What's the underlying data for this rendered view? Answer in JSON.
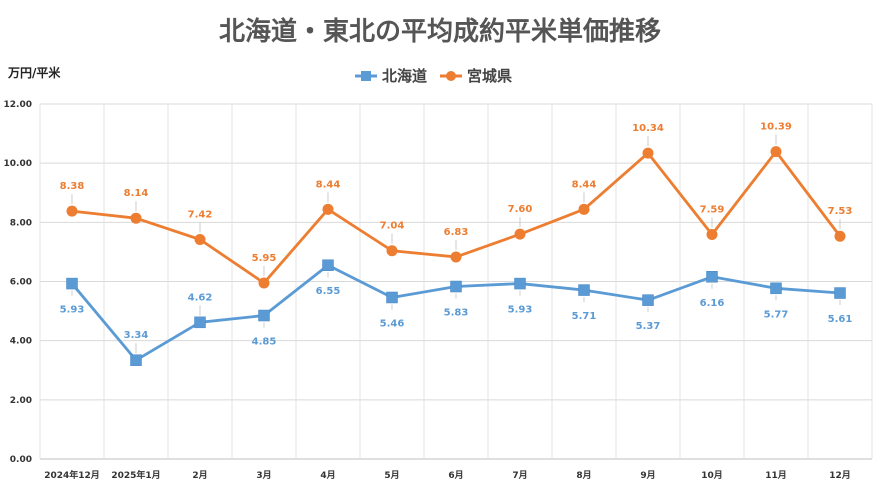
{
  "chart_data": {
    "type": "line",
    "title": "北海道・東北の平均成約平米単価推移",
    "ylabel": "万円/平米",
    "xlabel": "",
    "ylim": [
      0,
      12
    ],
    "yticks": [
      "0.00",
      "2.00",
      "4.00",
      "6.00",
      "8.00",
      "10.00",
      "12.00"
    ],
    "categories": [
      "2024年12月",
      "2025年1月",
      "2月",
      "3月",
      "4月",
      "5月",
      "6月",
      "7月",
      "8月",
      "9月",
      "10月",
      "11月",
      "12月"
    ],
    "grid": true,
    "legend": "top-center",
    "series": [
      {
        "name": "北海道",
        "color": "#5b9bd5",
        "marker": "square",
        "values": [
          5.93,
          3.34,
          4.62,
          4.85,
          6.55,
          5.46,
          5.83,
          5.93,
          5.71,
          5.37,
          6.16,
          5.77,
          5.61
        ],
        "labels": [
          "5.93",
          "3.34",
          "4.62",
          "4.85",
          "6.55",
          "5.46",
          "5.83",
          "5.93",
          "5.71",
          "5.37",
          "6.16",
          "5.77",
          "5.61"
        ],
        "label_pos": [
          "below",
          "above",
          "above",
          "below",
          "below",
          "below",
          "below",
          "below",
          "below",
          "below",
          "below",
          "below",
          "below"
        ]
      },
      {
        "name": "宮城県",
        "color": "#ed7d31",
        "marker": "circle",
        "values": [
          8.38,
          8.14,
          7.42,
          5.95,
          8.44,
          7.04,
          6.83,
          7.6,
          8.44,
          10.34,
          7.59,
          10.39,
          7.53
        ],
        "labels": [
          "8.38",
          "8.14",
          "7.42",
          "5.95",
          "8.44",
          "7.04",
          "6.83",
          "7.60",
          "8.44",
          "10.34",
          "7.59",
          "10.39",
          "7.53"
        ],
        "label_pos": [
          "above",
          "above",
          "above",
          "above",
          "above",
          "above",
          "above",
          "above",
          "above",
          "above",
          "above",
          "above",
          "above"
        ]
      }
    ]
  }
}
